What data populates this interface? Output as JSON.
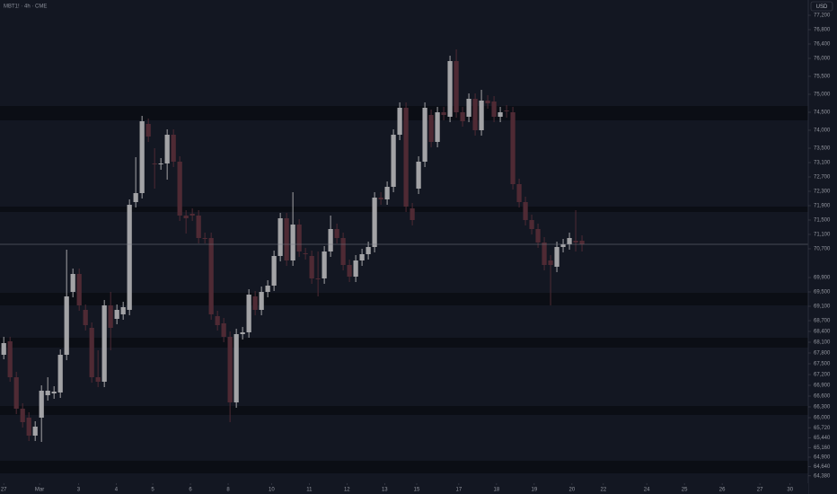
{
  "chart_data": {
    "type": "candlestick",
    "title": "MBT1! · 4h · CME",
    "currency": "USD",
    "up_color": "#a3a3a6",
    "down_color": "#4f2a34",
    "zones": [
      [
        74275,
        74675
      ],
      [
        71725,
        71875
      ],
      [
        69125,
        69475
      ],
      [
        67950,
        68225
      ],
      [
        66075,
        66325
      ],
      [
        64450,
        64800
      ]
    ],
    "x": [
      0,
      1,
      2,
      3,
      4,
      5,
      6,
      7,
      8,
      9,
      10,
      11,
      12,
      13,
      14,
      15,
      16,
      17,
      18,
      19,
      20,
      21,
      22,
      23,
      24,
      25,
      26,
      27,
      28,
      29,
      30,
      31,
      32,
      33,
      34,
      35,
      36,
      37,
      38,
      39,
      40,
      41,
      42,
      43,
      44,
      45,
      46,
      47,
      48,
      49,
      50,
      51,
      52,
      53,
      54,
      55,
      56,
      57,
      58,
      59,
      60,
      61,
      62,
      63,
      64,
      65,
      66,
      67,
      68,
      69,
      70,
      71,
      72,
      73,
      74,
      75,
      76,
      77,
      78,
      79,
      80,
      81,
      82,
      83,
      84,
      85,
      86,
      87,
      88,
      89,
      90,
      91,
      92
    ],
    "open": [
      67750,
      68125,
      67125,
      66250,
      66000,
      65500,
      66000,
      66625,
      66675,
      66700,
      67750,
      69500,
      70000,
      69000,
      68500,
      67125,
      67000,
      69125,
      68750,
      68875,
      69000,
      72000,
      72250,
      74175,
      73075,
      73050,
      73075,
      73875,
      73125,
      71625,
      71675,
      71625,
      71000,
      71000,
      68825,
      68625,
      68250,
      66425,
      68325,
      68375,
      69375,
      69000,
      69500,
      69675,
      70500,
      71550,
      70375,
      71375,
      70575,
      70500,
      69875,
      69875,
      70625,
      71250,
      71000,
      70250,
      69925,
      70375,
      70550,
      70750,
      72125,
      72075,
      72425,
      73875,
      74625,
      71825,
      72375,
      73125,
      74425,
      73675,
      74500,
      74375,
      75925,
      74500,
      74375,
      74875,
      74000,
      74825,
      74800,
      74375,
      74550,
      74500,
      72500,
      72000,
      71500,
      71250,
      70875,
      70375,
      70200,
      70750,
      70825,
      70925,
      70925
    ],
    "high": [
      68250,
      68250,
      67275,
      66400,
      66150,
      65900,
      66900,
      67125,
      66875,
      67900,
      70675,
      70150,
      70150,
      69150,
      68650,
      67875,
      69275,
      69500,
      69150,
      69225,
      72075,
      73250,
      74400,
      74325,
      73500,
      73225,
      74025,
      74025,
      73275,
      71775,
      71825,
      71775,
      71150,
      71150,
      68975,
      68775,
      68400,
      68475,
      68525,
      69575,
      69525,
      69650,
      69825,
      70650,
      71700,
      71700,
      72275,
      71525,
      70725,
      70650,
      70625,
      70775,
      71625,
      71400,
      71150,
      70400,
      70525,
      70700,
      70900,
      72275,
      72275,
      72575,
      74025,
      74775,
      74775,
      71975,
      73275,
      74775,
      74575,
      74650,
      74650,
      76075,
      76250,
      74650,
      75025,
      75025,
      75125,
      74975,
      74950,
      74650,
      74700,
      74650,
      72650,
      72150,
      71650,
      71400,
      71025,
      70525,
      70900,
      70975,
      71150,
      71775,
      71075
    ],
    "low": [
      67625,
      67000,
      66100,
      65725,
      65350,
      65350,
      65325,
      66475,
      66525,
      66550,
      67600,
      69350,
      68975,
      68425,
      66975,
      66850,
      66850,
      67875,
      68600,
      68725,
      68850,
      71850,
      72100,
      73675,
      72375,
      72900,
      72625,
      72975,
      71475,
      71125,
      71475,
      70850,
      70850,
      68725,
      68425,
      68100,
      65875,
      66275,
      68175,
      68225,
      68850,
      68850,
      69350,
      69525,
      70350,
      70225,
      70225,
      70475,
      70400,
      69725,
      69375,
      69725,
      70475,
      70850,
      70100,
      69775,
      69775,
      70225,
      70400,
      70600,
      71925,
      71925,
      72275,
      73725,
      71725,
      71350,
      72225,
      72975,
      73525,
      73525,
      74275,
      74225,
      74350,
      74100,
      74225,
      73850,
      73850,
      74600,
      74225,
      74225,
      74350,
      72350,
      71850,
      71350,
      71100,
      70725,
      70100,
      69125,
      70050,
      70600,
      70675,
      70625,
      70625
    ],
    "close": [
      68075,
      67125,
      66250,
      65875,
      65500,
      65750,
      66750,
      66750,
      66725,
      67750,
      69375,
      70000,
      69125,
      68575,
      67125,
      67000,
      69125,
      68500,
      69000,
      69075,
      71925,
      72250,
      74250,
      73825,
      73050,
      73075,
      73875,
      73125,
      71625,
      71550,
      71625,
      71000,
      70975,
      68875,
      68575,
      68250,
      66425,
      68325,
      68375,
      69425,
      69000,
      69500,
      69675,
      70500,
      71550,
      70375,
      71375,
      70625,
      70550,
      69875,
      69850,
      70625,
      71250,
      71000,
      70250,
      69925,
      70375,
      70550,
      70750,
      72125,
      72075,
      72425,
      73875,
      74625,
      71875,
      71500,
      73125,
      74625,
      73675,
      74500,
      74425,
      75925,
      74500,
      74250,
      74875,
      74000,
      74825,
      74750,
      74375,
      74500,
      74525,
      72500,
      72000,
      71500,
      71250,
      70875,
      70250,
      70250,
      70750,
      70825,
      71000,
      70875,
      70825
    ],
    "xlim": [
      -0.6,
      128
    ],
    "ylim": [
      63875,
      77625
    ],
    "xticks": [
      {
        "value": 0,
        "label": "27"
      },
      {
        "value": 5.7,
        "label": "Mar"
      },
      {
        "value": 11.9,
        "label": "3"
      },
      {
        "value": 17.9,
        "label": "4"
      },
      {
        "value": 23.7,
        "label": "5"
      },
      {
        "value": 29.7,
        "label": "6"
      },
      {
        "value": 35.7,
        "label": "8"
      },
      {
        "value": 42.6,
        "label": "10"
      },
      {
        "value": 48.6,
        "label": "11"
      },
      {
        "value": 54.6,
        "label": "12"
      },
      {
        "value": 60.6,
        "label": "13"
      },
      {
        "value": 65.7,
        "label": "15"
      },
      {
        "value": 72.4,
        "label": "17"
      },
      {
        "value": 78.4,
        "label": "18"
      },
      {
        "value": 84.4,
        "label": "19"
      },
      {
        "value": 90.4,
        "label": "20"
      },
      {
        "value": 95.4,
        "label": "22"
      },
      {
        "value": 102.3,
        "label": "24"
      },
      {
        "value": 108.3,
        "label": "25"
      },
      {
        "value": 114.3,
        "label": "26"
      },
      {
        "value": 120.3,
        "label": "27"
      },
      {
        "value": 125.1,
        "label": "30"
      }
    ],
    "yticks": [
      {
        "value": 77200,
        "label": "77,200"
      },
      {
        "value": 76800,
        "label": "76,800"
      },
      {
        "value": 76400,
        "label": "76,400"
      },
      {
        "value": 76000,
        "label": "76,000"
      },
      {
        "value": 75500,
        "label": "75,500"
      },
      {
        "value": 75000,
        "label": "75,000"
      },
      {
        "value": 74500,
        "label": "74,500"
      },
      {
        "value": 74000,
        "label": "74,000"
      },
      {
        "value": 73500,
        "label": "73,500"
      },
      {
        "value": 73100,
        "label": "73,100"
      },
      {
        "value": 72700,
        "label": "72,700"
      },
      {
        "value": 72300,
        "label": "72,300"
      },
      {
        "value": 71900,
        "label": "71,900"
      },
      {
        "value": 71500,
        "label": "71,500"
      },
      {
        "value": 71100,
        "label": "71,100"
      },
      {
        "value": 70700,
        "label": "70,700"
      },
      {
        "value": 69900,
        "label": "69,900"
      },
      {
        "value": 69500,
        "label": "69,500"
      },
      {
        "value": 69100,
        "label": "69,100"
      },
      {
        "value": 68700,
        "label": "68,700"
      },
      {
        "value": 68400,
        "label": "68,400"
      },
      {
        "value": 68100,
        "label": "68,100"
      },
      {
        "value": 67800,
        "label": "67,800"
      },
      {
        "value": 67500,
        "label": "67,500"
      },
      {
        "value": 67200,
        "label": "67,200"
      },
      {
        "value": 66900,
        "label": "66,900"
      },
      {
        "value": 66600,
        "label": "66,600"
      },
      {
        "value": 66300,
        "label": "66,300"
      },
      {
        "value": 66000,
        "label": "66,000"
      },
      {
        "value": 65720,
        "label": "65,720"
      },
      {
        "value": 65440,
        "label": "65,440"
      },
      {
        "value": 65160,
        "label": "65,160"
      },
      {
        "value": 64900,
        "label": "64,900"
      },
      {
        "value": 64640,
        "label": "64,640"
      },
      {
        "value": 64380,
        "label": "64,380"
      }
    ]
  }
}
